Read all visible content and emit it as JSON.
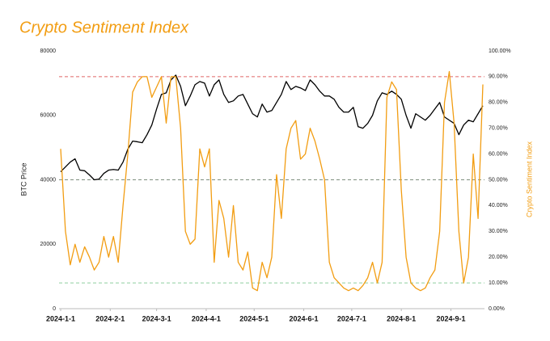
{
  "chart_data": {
    "type": "line",
    "title": "Crypto Sentiment Index",
    "ylabel": "BTC Price",
    "y2label": "Crypto Sentiment Index",
    "x": [
      "2024-01-01",
      "2024-01-04",
      "2024-01-07",
      "2024-01-10",
      "2024-01-13",
      "2024-01-16",
      "2024-01-19",
      "2024-01-22",
      "2024-01-25",
      "2024-01-28",
      "2024-01-31",
      "2024-02-03",
      "2024-02-06",
      "2024-02-09",
      "2024-02-12",
      "2024-02-15",
      "2024-02-18",
      "2024-02-21",
      "2024-02-24",
      "2024-02-27",
      "2024-03-01",
      "2024-03-04",
      "2024-03-07",
      "2024-03-10",
      "2024-03-13",
      "2024-03-16",
      "2024-03-19",
      "2024-03-22",
      "2024-03-25",
      "2024-03-28",
      "2024-03-31",
      "2024-04-03",
      "2024-04-06",
      "2024-04-09",
      "2024-04-12",
      "2024-04-15",
      "2024-04-18",
      "2024-04-21",
      "2024-04-24",
      "2024-04-27",
      "2024-04-30",
      "2024-05-03",
      "2024-05-06",
      "2024-05-09",
      "2024-05-12",
      "2024-05-15",
      "2024-05-18",
      "2024-05-21",
      "2024-05-24",
      "2024-05-27",
      "2024-05-30",
      "2024-06-02",
      "2024-06-05",
      "2024-06-08",
      "2024-06-11",
      "2024-06-14",
      "2024-06-17",
      "2024-06-20",
      "2024-06-23",
      "2024-06-26",
      "2024-06-29",
      "2024-07-02",
      "2024-07-05",
      "2024-07-08",
      "2024-07-11",
      "2024-07-14",
      "2024-07-17",
      "2024-07-20",
      "2024-07-23",
      "2024-07-26",
      "2024-07-29",
      "2024-08-01",
      "2024-08-04",
      "2024-08-07",
      "2024-08-10",
      "2024-08-13",
      "2024-08-16",
      "2024-08-19",
      "2024-08-22",
      "2024-08-25",
      "2024-08-28",
      "2024-08-31",
      "2024-09-03",
      "2024-09-06",
      "2024-09-09",
      "2024-09-12",
      "2024-09-15",
      "2024-09-18",
      "2024-09-21"
    ],
    "series": [
      {
        "name": "BTC Price",
        "color": "#000000",
        "axis": "y",
        "values": [
          42500,
          44000,
          45500,
          46500,
          43000,
          42800,
          41500,
          40000,
          40200,
          42000,
          43000,
          43200,
          43000,
          45500,
          49500,
          52000,
          51800,
          51500,
          54000,
          57000,
          62000,
          66500,
          67000,
          71000,
          72500,
          69000,
          63000,
          66000,
          69500,
          70500,
          70000,
          66000,
          69500,
          71000,
          66500,
          64000,
          64500,
          66000,
          66500,
          63500,
          60500,
          59500,
          63500,
          61000,
          61500,
          64000,
          66500,
          70500,
          68000,
          69000,
          68500,
          67700,
          71000,
          69500,
          67500,
          66000,
          66000,
          65000,
          62500,
          61000,
          61000,
          62500,
          56500,
          56000,
          57500,
          60000,
          64500,
          67000,
          66500,
          67500,
          66500,
          65000,
          60000,
          56000,
          60500,
          59500,
          58500,
          60000,
          62000,
          64000,
          59500,
          58500,
          57500,
          54000,
          57000,
          58500,
          58000,
          60500,
          63000
        ]
      },
      {
        "name": "Crypto Sentiment Index",
        "color": "#f29d12",
        "axis": "y2",
        "values": [
          62,
          30,
          17,
          25,
          18,
          24,
          20,
          15,
          18,
          28,
          20,
          28,
          18,
          40,
          60,
          84,
          88,
          90,
          90,
          82,
          86,
          90,
          72,
          90,
          90,
          70,
          30,
          25,
          27,
          62,
          55,
          62,
          18,
          42,
          35,
          20,
          40,
          18,
          15,
          22,
          8,
          7,
          18,
          12,
          20,
          52,
          35,
          62,
          70,
          73,
          58,
          60,
          70,
          65,
          58,
          50,
          18,
          12,
          10,
          8,
          7,
          8,
          7,
          9,
          12,
          18,
          10,
          18,
          82,
          88,
          85,
          46,
          20,
          10,
          8,
          7,
          8,
          12,
          15,
          30,
          80,
          92,
          72,
          30,
          10,
          20,
          60,
          35,
          87
        ]
      }
    ],
    "xlim": [
      "2024-01-01",
      "2024-09-21"
    ],
    "xticks": [
      {
        "value": "2024-01-01",
        "label": "2024-1-1"
      },
      {
        "value": "2024-02-01",
        "label": "2024-2-1"
      },
      {
        "value": "2024-03-01",
        "label": "2024-3-1"
      },
      {
        "value": "2024-04-01",
        "label": "2024-4-1"
      },
      {
        "value": "2024-05-01",
        "label": "2024-5-1"
      },
      {
        "value": "2024-06-01",
        "label": "2024-6-1"
      },
      {
        "value": "2024-07-01",
        "label": "2024-7-1"
      },
      {
        "value": "2024-08-01",
        "label": "2024-8-1"
      },
      {
        "value": "2024-09-01",
        "label": "2024-9-1"
      }
    ],
    "ylim": [
      0,
      80000
    ],
    "yticks": [
      0,
      20000,
      40000,
      60000,
      80000
    ],
    "y2lim": [
      0,
      100
    ],
    "y2ticks": [
      {
        "value": 0,
        "label": "0.00%"
      },
      {
        "value": 10,
        "label": "10.00%"
      },
      {
        "value": 20,
        "label": "20.00%"
      },
      {
        "value": 30,
        "label": "30.00%"
      },
      {
        "value": 40,
        "label": "40.00%"
      },
      {
        "value": 50,
        "label": "50.00%"
      },
      {
        "value": 60,
        "label": "60.00%"
      },
      {
        "value": 70,
        "label": "70.00%"
      },
      {
        "value": 80,
        "label": "80.00%"
      },
      {
        "value": 90,
        "label": "90.00%"
      },
      {
        "value": 100,
        "label": "100.00%"
      }
    ],
    "reference_lines": [
      {
        "value": 90,
        "axis": "y2",
        "color": "#e06666"
      },
      {
        "value": 50,
        "axis": "y2",
        "color": "#7f8f7f"
      },
      {
        "value": 10,
        "axis": "y2",
        "color": "#8fcf9f"
      }
    ]
  }
}
